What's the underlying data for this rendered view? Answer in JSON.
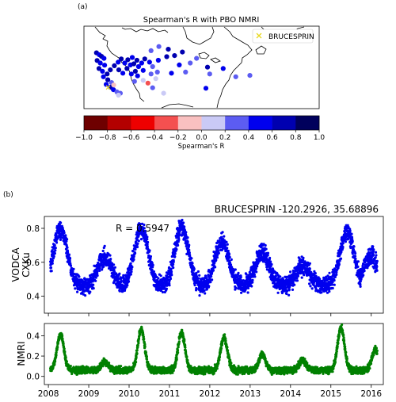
{
  "chart_data": [
    {
      "type": "scatter",
      "panel_label": "(a)",
      "title": "Spearman's R with PBO NMRI",
      "map_region": "North America (west / central US, southern Canada, northeast US)",
      "legend": {
        "placement": "top-right",
        "entries": [
          {
            "marker": "x",
            "color": "#e8d820",
            "label": "BRUCESPRIN"
          }
        ]
      },
      "colorbar": {
        "label": "Spearman's R",
        "range": [
          -1.0,
          1.0
        ],
        "ticks": [
          "−1.0",
          "−0.8",
          "−0.6",
          "−0.4",
          "−0.2",
          "0.0",
          "0.2",
          "0.4",
          "0.6",
          "0.8",
          "1.0"
        ],
        "bins": [
          "#6e0000",
          "#b30000",
          "#ee0000",
          "#f45050",
          "#f9c0c0",
          "#cacaf6",
          "#5c5cf2",
          "#0000ee",
          "#0000b0",
          "#00005c"
        ]
      },
      "sites": {
        "description": "Site circles colored by Spearman's R, mostly in western US",
        "points": [
          [
            -124.0,
            48.3,
            0.62
          ],
          [
            -123.1,
            47.6,
            0.55
          ],
          [
            -122.4,
            47.0,
            0.66
          ],
          [
            -121.6,
            46.3,
            0.48
          ],
          [
            -123.8,
            45.5,
            0.72
          ],
          [
            -122.8,
            44.6,
            0.58
          ],
          [
            -121.4,
            43.8,
            0.44
          ],
          [
            -123.2,
            42.6,
            0.67
          ],
          [
            -122.1,
            41.6,
            0.52
          ],
          [
            -120.6,
            40.6,
            0.63
          ],
          [
            -121.8,
            39.6,
            0.46
          ],
          [
            -120.4,
            38.5,
            0.71
          ],
          [
            -119.2,
            37.5,
            0.38
          ],
          [
            -120.9,
            36.8,
            0.55
          ],
          [
            -119.6,
            35.8,
            0.62
          ],
          [
            -118.6,
            34.9,
            0.48
          ],
          [
            -117.5,
            34.1,
            0.31
          ],
          [
            -116.4,
            33.6,
            0.22
          ],
          [
            -117.0,
            32.9,
            0.12
          ],
          [
            -118.5,
            36.6,
            -0.05
          ],
          [
            -119.6,
            42.1,
            0.62
          ],
          [
            -118.3,
            43.6,
            0.75
          ],
          [
            -117.1,
            44.9,
            0.58
          ],
          [
            -116.1,
            46.1,
            0.68
          ],
          [
            -115.0,
            44.6,
            0.52
          ],
          [
            -116.9,
            42.1,
            0.62
          ],
          [
            -115.6,
            40.9,
            0.55
          ],
          [
            -114.3,
            42.6,
            0.72
          ],
          [
            -113.2,
            43.9,
            0.44
          ],
          [
            -114.0,
            45.8,
            0.66
          ],
          [
            -112.6,
            46.6,
            0.58
          ],
          [
            -111.1,
            45.6,
            0.65
          ],
          [
            -112.1,
            44.3,
            0.78
          ],
          [
            -110.6,
            43.3,
            0.52
          ],
          [
            -111.6,
            41.6,
            0.68
          ],
          [
            -112.9,
            40.6,
            0.51
          ],
          [
            -109.6,
            44.6,
            0.48
          ],
          [
            -108.6,
            46.1,
            0.72
          ],
          [
            -107.1,
            44.9,
            0.45
          ],
          [
            -106.1,
            43.3,
            0.35
          ],
          [
            -109.1,
            41.9,
            0.58
          ],
          [
            -110.9,
            39.9,
            0.55
          ],
          [
            -106.6,
            40.6,
            0.27
          ],
          [
            -104.6,
            41.3,
            0.38
          ],
          [
            -111.9,
            37.9,
            0.28
          ],
          [
            -109.1,
            38.3,
            0.18
          ],
          [
            -107.6,
            37.3,
            -0.38
          ],
          [
            -105.1,
            38.9,
            0.12
          ],
          [
            -106.1,
            35.6,
            0.22
          ],
          [
            -104.3,
            45.6,
            0.55
          ],
          [
            -101.6,
            46.9,
            0.72
          ],
          [
            -99.1,
            47.3,
            0.65
          ],
          [
            -106.6,
            49.1,
            0.35
          ],
          [
            -101.1,
            49.6,
            0.68
          ],
          [
            -96.6,
            48.6,
            0.62
          ],
          [
            -104.1,
            50.6,
            0.32
          ],
          [
            -97.6,
            43.9,
            0.42
          ],
          [
            -94.1,
            44.6,
            0.28
          ],
          [
            -92.1,
            46.3,
            0.38
          ],
          [
            -100.1,
            40.9,
            0.41
          ],
          [
            -95.6,
            41.3,
            0.24
          ],
          [
            -102.6,
            33.6,
            0.18
          ],
          [
            -87.9,
            40.6,
            0.38
          ],
          [
            -88.6,
            43.1,
            0.62
          ],
          [
            -83.6,
            42.6,
            0.48
          ],
          [
            -79.6,
            39.6,
            0.22
          ],
          [
            -75.1,
            40.1,
            0.35
          ],
          [
            -89.1,
            35.4,
            0.45
          ]
        ]
      },
      "highlighted_site": {
        "name": "BRUCESPRIN",
        "marker": "x"
      }
    },
    {
      "type": "scatter",
      "panel_label": "(b)",
      "header": "BRUCESPRIN  -120.2926, 35.68896",
      "annotation": "R = 0.5947",
      "x_ticks": [
        "2008",
        "2009",
        "2010",
        "2011",
        "2012",
        "2013",
        "2014",
        "2015",
        "2016"
      ],
      "xlim": [
        2007.9,
        2016.3
      ],
      "series": [
        {
          "ylabel": [
            "VODCA",
            "CXKu"
          ],
          "color": "#0000ee",
          "ylim": [
            0.3,
            0.87
          ],
          "y_ticks": [
            "0.4",
            "0.6",
            "0.8"
          ],
          "description": "Daily VODCA CXKu, seasonal peaks ~0.8 in spring, troughs ~0.45"
        },
        {
          "ylabel": [
            "NMRI"
          ],
          "color": "#008000",
          "ylim": [
            -0.08,
            0.52
          ],
          "y_ticks": [
            "0.0",
            "0.2",
            "0.4"
          ],
          "description": "Daily NMRI, sharp spring peaks ~0.4-0.48, baseline ~0.05"
        }
      ]
    }
  ]
}
